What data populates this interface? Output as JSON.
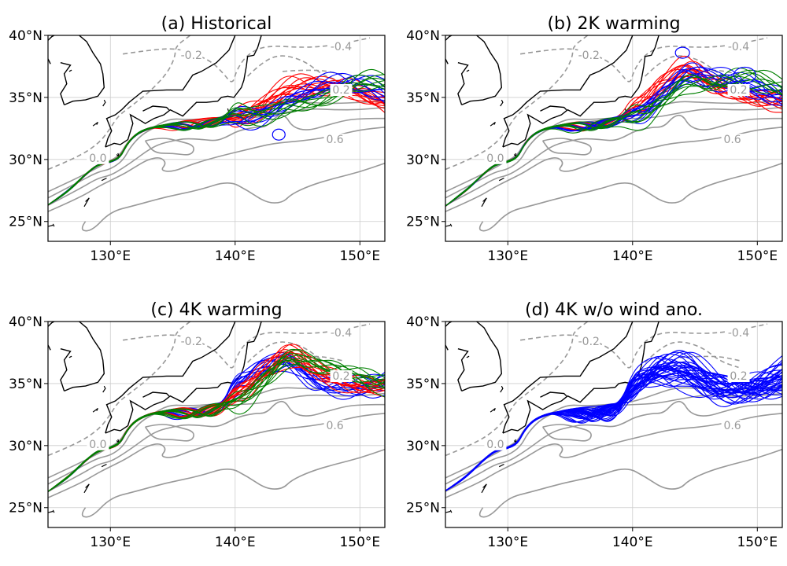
{
  "figure": {
    "panels": [
      {
        "id": "a",
        "title": "(a) Historical",
        "ensemble": [
          {
            "color": "#ff0000",
            "count": 14
          },
          {
            "color": "#0000ff",
            "count": 10
          },
          {
            "color": "#008000",
            "count": 8
          }
        ]
      },
      {
        "id": "b",
        "title": "(b) 2K warming",
        "ensemble": [
          {
            "color": "#ff0000",
            "count": 12
          },
          {
            "color": "#0000ff",
            "count": 12
          },
          {
            "color": "#008000",
            "count": 8
          }
        ]
      },
      {
        "id": "c",
        "title": "(c) 4K warming",
        "ensemble": [
          {
            "color": "#0000ff",
            "count": 12
          },
          {
            "color": "#ff0000",
            "count": 12
          },
          {
            "color": "#008000",
            "count": 10
          }
        ]
      },
      {
        "id": "d",
        "title": "(d) 4K w/o wind ano.",
        "ensemble": [
          {
            "color": "#0000ff",
            "count": 36
          }
        ]
      }
    ],
    "x_ticks": [
      {
        "lon": 130,
        "label": "130°E"
      },
      {
        "lon": 140,
        "label": "140°E"
      },
      {
        "lon": 150,
        "label": "150°E"
      }
    ],
    "y_ticks": [
      {
        "lat": 25,
        "label": "25°N"
      },
      {
        "lat": 30,
        "label": "30°N"
      },
      {
        "lat": 35,
        "label": "35°N"
      },
      {
        "lat": 40,
        "label": "40°N"
      }
    ],
    "contour_labels": [
      {
        "text": "-0.2",
        "lon": 136.5,
        "lat": 38.3
      },
      {
        "text": "-0.4",
        "lon": 148.5,
        "lat": 39.0
      },
      {
        "text": "0.0",
        "lon": 129.0,
        "lat": 30.0
      },
      {
        "text": "0.6",
        "lon": 148.0,
        "lat": 31.5
      },
      {
        "text": "0.2",
        "lon": 148.5,
        "lat": 35.5
      }
    ],
    "extent": {
      "lon": [
        125,
        152
      ],
      "lat": [
        23.4,
        40
      ]
    },
    "colors": {
      "coast": "#000000",
      "contour": "#999999",
      "grid": "#cccccc"
    }
  }
}
